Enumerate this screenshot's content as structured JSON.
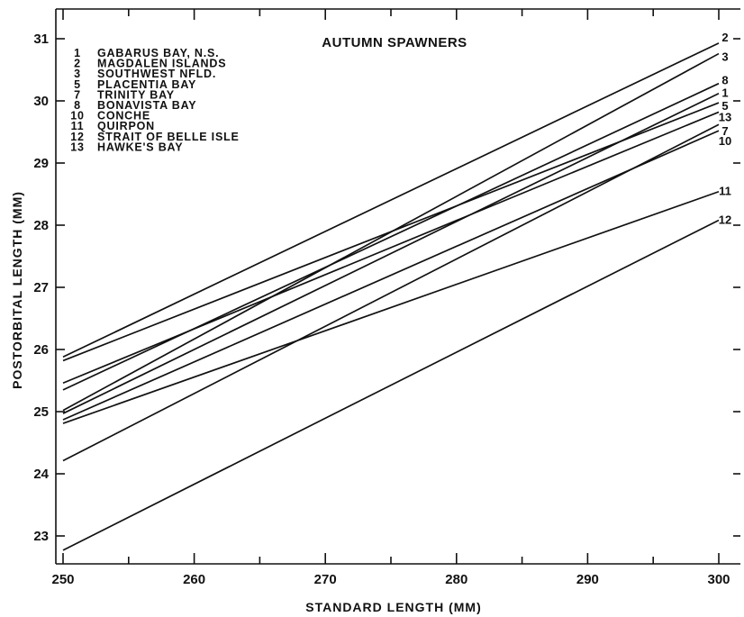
{
  "chart_data": {
    "type": "line",
    "title": "AUTUMN SPAWNERS",
    "xlabel": "STANDARD LENGTH (MM)",
    "ylabel": "POSTORBITAL LENGTH (MM)",
    "xlim": [
      250,
      300
    ],
    "ylim": [
      22.55,
      31.2
    ],
    "xticks": [
      250,
      260,
      270,
      280,
      290,
      300
    ],
    "yticks": [
      23,
      24,
      25,
      26,
      27,
      28,
      29,
      30,
      31
    ],
    "grid": false,
    "legend_position": "top-left",
    "legend": [
      {
        "number": "1",
        "name": "GABARUS BAY, N.S."
      },
      {
        "number": "2",
        "name": "MAGDALEN ISLANDS"
      },
      {
        "number": "3",
        "name": "SOUTHWEST NFLD."
      },
      {
        "number": "5",
        "name": "PLACENTIA BAY"
      },
      {
        "number": "7",
        "name": "TRINITY BAY"
      },
      {
        "number": "8",
        "name": "BONAVISTA BAY"
      },
      {
        "number": "10",
        "name": "CONCHE"
      },
      {
        "number": "11",
        "name": "QUIRPON"
      },
      {
        "number": "12",
        "name": "STRAIT OF BELLE ISLE"
      },
      {
        "number": "13",
        "name": "HAWKE'S BAY"
      }
    ],
    "series": [
      {
        "name": "2",
        "x": [
          250,
          300
        ],
        "y": [
          25.88,
          30.93
        ]
      },
      {
        "name": "3",
        "x": [
          250,
          300
        ],
        "y": [
          25.02,
          30.76
        ]
      },
      {
        "name": "8",
        "x": [
          250,
          300
        ],
        "y": [
          25.35,
          30.28
        ]
      },
      {
        "name": "1",
        "x": [
          250,
          300
        ],
        "y": [
          24.97,
          30.12
        ]
      },
      {
        "name": "5",
        "x": [
          250,
          300
        ],
        "y": [
          25.82,
          29.97
        ]
      },
      {
        "name": "13",
        "x": [
          250,
          300
        ],
        "y": [
          25.46,
          29.82
        ]
      },
      {
        "name": "7",
        "x": [
          250,
          300
        ],
        "y": [
          24.21,
          29.62
        ]
      },
      {
        "name": "10",
        "x": [
          250,
          300
        ],
        "y": [
          24.87,
          29.52
        ]
      },
      {
        "name": "11",
        "x": [
          250,
          300
        ],
        "y": [
          24.81,
          28.54
        ]
      },
      {
        "name": "12",
        "x": [
          250,
          300
        ],
        "y": [
          22.77,
          28.08
        ]
      }
    ]
  }
}
